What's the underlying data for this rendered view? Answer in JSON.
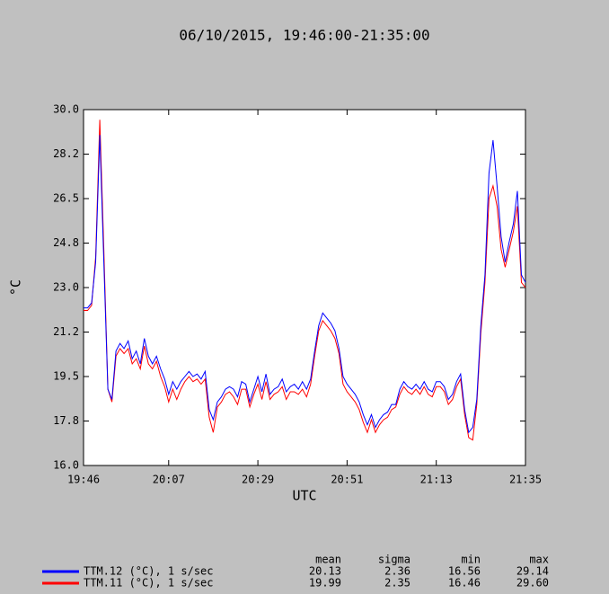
{
  "chart_data": {
    "type": "line",
    "title": "06/10/2015, 19:46:00-21:35:00",
    "ylabel": "°C",
    "xlabel": "UTC",
    "xlim": [
      "19:46",
      "21:35"
    ],
    "xticks": [
      "19:46",
      "20:07",
      "20:29",
      "20:51",
      "21:13",
      "21:35"
    ],
    "ylim": [
      16,
      30
    ],
    "yticks": [
      {
        "value": 16,
        "label": "16.0"
      },
      {
        "value": 17.75,
        "label": "17.8"
      },
      {
        "value": 19.5,
        "label": "19.5"
      },
      {
        "value": 21.25,
        "label": "21.2"
      },
      {
        "value": 23,
        "label": "23.0"
      },
      {
        "value": 24.75,
        "label": "24.8"
      },
      {
        "value": 26.5,
        "label": "26.5"
      },
      {
        "value": 28.25,
        "label": "28.2"
      },
      {
        "value": 30,
        "label": "30.0"
      }
    ],
    "x": [
      "19:46",
      "19:47",
      "19:48",
      "19:49",
      "19:50",
      "19:51",
      "19:52",
      "19:53",
      "19:54",
      "19:55",
      "19:56",
      "19:57",
      "19:58",
      "19:59",
      "20:00",
      "20:01",
      "20:02",
      "20:03",
      "20:04",
      "20:05",
      "20:06",
      "20:07",
      "20:08",
      "20:09",
      "20:10",
      "20:11",
      "20:12",
      "20:13",
      "20:14",
      "20:15",
      "20:16",
      "20:17",
      "20:18",
      "20:19",
      "20:20",
      "20:21",
      "20:22",
      "20:23",
      "20:24",
      "20:25",
      "20:26",
      "20:27",
      "20:28",
      "20:29",
      "20:30",
      "20:31",
      "20:32",
      "20:33",
      "20:34",
      "20:35",
      "20:36",
      "20:37",
      "20:38",
      "20:39",
      "20:40",
      "20:41",
      "20:42",
      "20:43",
      "20:44",
      "20:45",
      "20:46",
      "20:47",
      "20:48",
      "20:49",
      "20:50",
      "20:51",
      "20:52",
      "20:53",
      "20:54",
      "20:55",
      "20:56",
      "20:57",
      "20:58",
      "20:59",
      "21:00",
      "21:01",
      "21:02",
      "21:03",
      "21:04",
      "21:05",
      "21:06",
      "21:07",
      "21:08",
      "21:09",
      "21:10",
      "21:11",
      "21:12",
      "21:13",
      "21:14",
      "21:15",
      "21:16",
      "21:17",
      "21:18",
      "21:19",
      "21:20",
      "21:21",
      "21:22",
      "21:23",
      "21:24",
      "21:25",
      "21:26",
      "21:27",
      "21:28",
      "21:29",
      "21:30",
      "21:31",
      "21:32",
      "21:33",
      "21:34",
      "21:35"
    ],
    "stats_headers": [
      "mean",
      "sigma",
      "min",
      "max"
    ],
    "series": [
      {
        "name": "TTM.12 (°C), 1 s/sec",
        "color": "#0000ff",
        "stats": [
          "20.13",
          "2.36",
          "16.56",
          "29.14"
        ],
        "values": [
          22.2,
          22.2,
          22.4,
          24.0,
          29.0,
          24.0,
          19.0,
          18.6,
          20.5,
          20.8,
          20.6,
          20.9,
          20.2,
          20.5,
          20.0,
          21.0,
          20.3,
          20.0,
          20.3,
          19.8,
          19.4,
          18.8,
          19.3,
          19.0,
          19.3,
          19.5,
          19.7,
          19.5,
          19.6,
          19.4,
          19.7,
          18.2,
          17.8,
          18.5,
          18.7,
          19.0,
          19.1,
          19.0,
          18.7,
          19.3,
          19.2,
          18.5,
          19.0,
          19.5,
          18.9,
          19.6,
          18.8,
          19.0,
          19.1,
          19.4,
          18.9,
          19.1,
          19.2,
          19.0,
          19.3,
          19.0,
          19.4,
          20.5,
          21.5,
          22.0,
          21.8,
          21.6,
          21.3,
          20.6,
          19.5,
          19.2,
          19.0,
          18.8,
          18.5,
          18.0,
          17.6,
          18.0,
          17.5,
          17.8,
          18.0,
          18.1,
          18.4,
          18.4,
          19.0,
          19.3,
          19.1,
          19.0,
          19.2,
          19.0,
          19.3,
          19.0,
          18.9,
          19.3,
          19.3,
          19.1,
          18.6,
          18.8,
          19.3,
          19.6,
          18.2,
          17.3,
          17.5,
          18.6,
          21.5,
          23.5,
          27.5,
          28.8,
          27.0,
          25.0,
          24.0,
          24.8,
          25.5,
          26.8,
          23.5,
          23.2
        ]
      },
      {
        "name": "TTM.11 (°C), 1 s/sec",
        "color": "#ff0000",
        "stats": [
          "19.99",
          "2.35",
          "16.46",
          "29.60"
        ],
        "values": [
          22.1,
          22.1,
          22.3,
          24.2,
          29.6,
          24.5,
          19.0,
          18.5,
          20.3,
          20.6,
          20.4,
          20.6,
          20.0,
          20.2,
          19.8,
          20.7,
          20.0,
          19.8,
          20.1,
          19.5,
          19.1,
          18.5,
          19.0,
          18.6,
          19.0,
          19.3,
          19.5,
          19.3,
          19.4,
          19.2,
          19.4,
          17.9,
          17.3,
          18.3,
          18.5,
          18.8,
          18.9,
          18.7,
          18.4,
          19.0,
          19.0,
          18.3,
          18.8,
          19.2,
          18.6,
          19.3,
          18.6,
          18.8,
          18.9,
          19.1,
          18.6,
          18.9,
          18.9,
          18.8,
          19.0,
          18.7,
          19.2,
          20.3,
          21.3,
          21.7,
          21.5,
          21.3,
          21.0,
          20.4,
          19.2,
          18.9,
          18.7,
          18.5,
          18.2,
          17.7,
          17.3,
          17.8,
          17.3,
          17.6,
          17.8,
          17.9,
          18.2,
          18.3,
          18.8,
          19.1,
          18.9,
          18.8,
          19.0,
          18.8,
          19.1,
          18.8,
          18.7,
          19.1,
          19.1,
          18.9,
          18.4,
          18.6,
          19.1,
          19.4,
          18.0,
          17.1,
          17.0,
          18.4,
          21.2,
          23.2,
          26.5,
          27.0,
          26.2,
          24.5,
          23.8,
          24.5,
          25.2,
          26.2,
          23.2,
          23.0
        ]
      }
    ]
  }
}
